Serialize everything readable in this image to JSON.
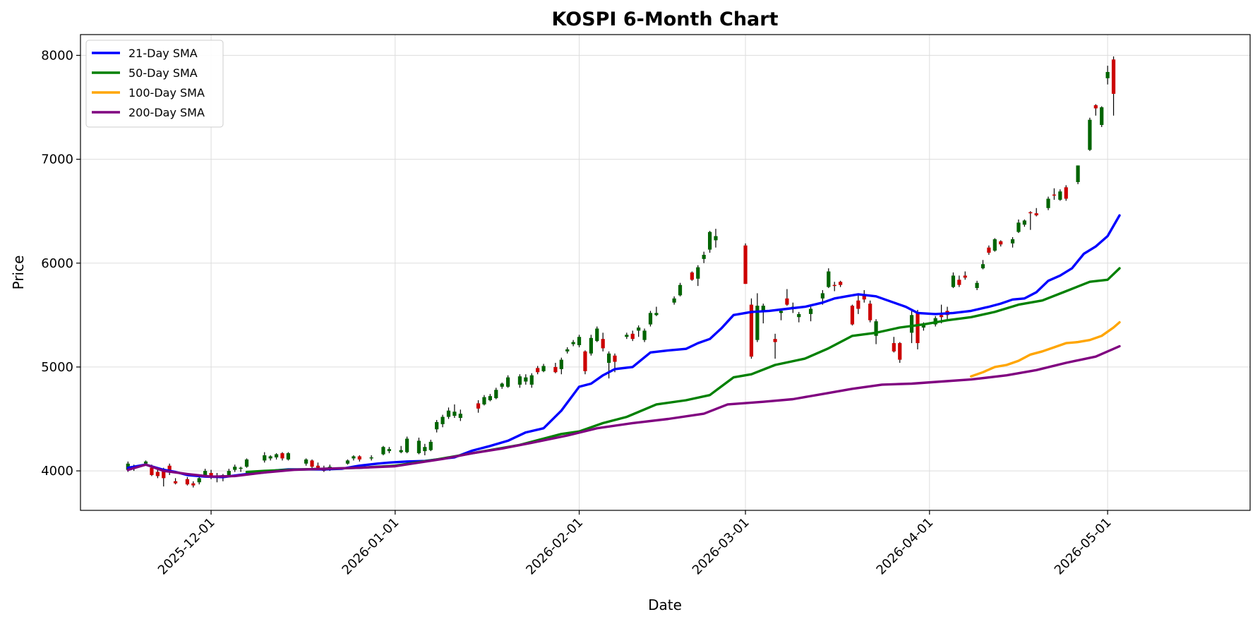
{
  "chart_data": {
    "type": "candlestick",
    "title": "KOSPI 6-Month Chart",
    "xlabel": "Date",
    "ylabel": "Price",
    "ylim": [
      3620,
      8200
    ],
    "xlim": [
      "2025-11-09",
      "2026-05-25"
    ],
    "x_ticks": [
      "2025-12-01",
      "2026-01-01",
      "2026-02-01",
      "2026-03-01",
      "2026-04-01",
      "2026-05-01"
    ],
    "y_ticks": [
      4000,
      5000,
      6000,
      7000,
      8000
    ],
    "grid": true,
    "legend_position": "top-left",
    "colors": {
      "up": "#006400",
      "down": "#cc0000",
      "wick": "#000000"
    },
    "candles": [
      [
        "2025-11-17",
        4010,
        4090,
        3990,
        4070
      ],
      [
        "2025-11-18",
        4040,
        4060,
        4000,
        4020
      ],
      [
        "2025-11-20",
        4070,
        4100,
        4050,
        4090
      ],
      [
        "2025-11-21",
        4030,
        4060,
        3950,
        3960
      ],
      [
        "2025-11-22",
        3990,
        4020,
        3930,
        3950
      ],
      [
        "2025-11-23",
        4010,
        4030,
        3850,
        3930
      ],
      [
        "2025-11-24",
        4050,
        4070,
        3960,
        3990
      ],
      [
        "2025-11-25",
        3900,
        3930,
        3870,
        3880
      ],
      [
        "2025-11-27",
        3920,
        3940,
        3860,
        3870
      ],
      [
        "2025-11-28",
        3880,
        3900,
        3840,
        3860
      ],
      [
        "2025-11-29",
        3890,
        3950,
        3870,
        3930
      ],
      [
        "2025-11-30",
        3950,
        4020,
        3940,
        4000
      ],
      [
        "2025-12-01",
        3980,
        4010,
        3920,
        3950
      ],
      [
        "2025-12-02",
        3950,
        3980,
        3890,
        3940
      ],
      [
        "2025-12-03",
        3940,
        3970,
        3900,
        3960
      ],
      [
        "2025-12-04",
        3960,
        4020,
        3950,
        4000
      ],
      [
        "2025-12-05",
        4010,
        4060,
        3990,
        4040
      ],
      [
        "2025-12-06",
        4020,
        4040,
        3990,
        4030
      ],
      [
        "2025-12-07",
        4040,
        4120,
        4030,
        4110
      ],
      [
        "2025-12-10",
        4100,
        4180,
        4080,
        4150
      ],
      [
        "2025-12-11",
        4120,
        4150,
        4100,
        4140
      ],
      [
        "2025-12-12",
        4130,
        4170,
        4110,
        4160
      ],
      [
        "2025-12-13",
        4170,
        4180,
        4100,
        4120
      ],
      [
        "2025-12-14",
        4110,
        4180,
        4100,
        4170
      ],
      [
        "2025-12-17",
        4070,
        4120,
        4050,
        4110
      ],
      [
        "2025-12-18",
        4100,
        4110,
        4020,
        4040
      ],
      [
        "2025-12-19",
        4050,
        4080,
        4010,
        4030
      ],
      [
        "2025-12-20",
        4020,
        4050,
        3990,
        4000
      ],
      [
        "2025-12-21",
        4020,
        4060,
        4000,
        4040
      ],
      [
        "2025-12-24",
        4070,
        4110,
        4060,
        4100
      ],
      [
        "2025-12-25",
        4120,
        4150,
        4100,
        4140
      ],
      [
        "2025-12-26",
        4140,
        4150,
        4090,
        4110
      ],
      [
        "2025-12-28",
        4120,
        4150,
        4100,
        4130
      ],
      [
        "2025-12-30",
        4160,
        4240,
        4150,
        4230
      ],
      [
        "2025-12-31",
        4190,
        4230,
        4170,
        4210
      ],
      [
        "2026-01-02",
        4180,
        4240,
        4170,
        4200
      ],
      [
        "2026-01-03",
        4180,
        4330,
        4170,
        4310
      ],
      [
        "2026-01-05",
        4170,
        4320,
        4160,
        4290
      ],
      [
        "2026-01-06",
        4190,
        4260,
        4150,
        4230
      ],
      [
        "2026-01-07",
        4200,
        4300,
        4190,
        4280
      ],
      [
        "2026-01-08",
        4400,
        4490,
        4370,
        4470
      ],
      [
        "2026-01-09",
        4450,
        4540,
        4420,
        4520
      ],
      [
        "2026-01-10",
        4520,
        4610,
        4500,
        4580
      ],
      [
        "2026-01-11",
        4530,
        4640,
        4510,
        4570
      ],
      [
        "2026-01-12",
        4510,
        4590,
        4480,
        4550
      ],
      [
        "2026-01-15",
        4650,
        4680,
        4560,
        4600
      ],
      [
        "2026-01-16",
        4640,
        4730,
        4630,
        4710
      ],
      [
        "2026-01-17",
        4680,
        4740,
        4670,
        4720
      ],
      [
        "2026-01-18",
        4700,
        4800,
        4690,
        4780
      ],
      [
        "2026-01-19",
        4810,
        4850,
        4790,
        4840
      ],
      [
        "2026-01-20",
        4810,
        4920,
        4800,
        4900
      ],
      [
        "2026-01-22",
        4830,
        4930,
        4800,
        4910
      ],
      [
        "2026-01-23",
        4860,
        4930,
        4830,
        4900
      ],
      [
        "2026-01-24",
        4830,
        4940,
        4800,
        4920
      ],
      [
        "2026-01-25",
        4990,
        5010,
        4930,
        4950
      ],
      [
        "2026-01-26",
        4960,
        5030,
        4950,
        5010
      ],
      [
        "2026-01-28",
        5000,
        5040,
        4940,
        4950
      ],
      [
        "2026-01-29",
        4980,
        5090,
        4930,
        5070
      ],
      [
        "2026-01-30",
        5150,
        5190,
        5130,
        5170
      ],
      [
        "2026-01-31",
        5220,
        5260,
        5200,
        5240
      ],
      [
        "2026-02-01",
        5210,
        5310,
        5190,
        5290
      ],
      [
        "2026-02-02",
        5150,
        5160,
        4930,
        4960
      ],
      [
        "2026-02-03",
        5130,
        5310,
        5110,
        5280
      ],
      [
        "2026-02-04",
        5250,
        5390,
        5240,
        5370
      ],
      [
        "2026-02-05",
        5270,
        5330,
        5150,
        5180
      ],
      [
        "2026-02-06",
        5040,
        5150,
        4890,
        5130
      ],
      [
        "2026-02-07",
        5110,
        5130,
        4950,
        5050
      ],
      [
        "2026-02-09",
        5290,
        5330,
        5270,
        5310
      ],
      [
        "2026-02-10",
        5320,
        5350,
        5250,
        5270
      ],
      [
        "2026-02-11",
        5350,
        5400,
        5290,
        5380
      ],
      [
        "2026-02-12",
        5260,
        5370,
        5240,
        5350
      ],
      [
        "2026-02-13",
        5410,
        5540,
        5390,
        5520
      ],
      [
        "2026-02-14",
        5500,
        5580,
        5490,
        5520
      ],
      [
        "2026-02-17",
        5620,
        5680,
        5600,
        5660
      ],
      [
        "2026-02-18",
        5690,
        5810,
        5680,
        5790
      ],
      [
        "2026-02-20",
        5910,
        5920,
        5830,
        5840
      ],
      [
        "2026-02-21",
        5850,
        5980,
        5780,
        5960
      ],
      [
        "2026-02-22",
        6040,
        6110,
        6000,
        6080
      ],
      [
        "2026-02-23",
        6130,
        6310,
        6100,
        6300
      ],
      [
        "2026-02-24",
        6220,
        6330,
        6150,
        6260
      ],
      [
        "2026-03-01",
        6170,
        6190,
        5800,
        5800
      ],
      [
        "2026-03-02",
        5600,
        5660,
        5080,
        5100
      ],
      [
        "2026-03-03",
        5260,
        5710,
        5240,
        5590
      ],
      [
        "2026-03-04",
        5540,
        5610,
        5420,
        5590
      ],
      [
        "2026-03-06",
        5270,
        5320,
        5080,
        5240
      ],
      [
        "2026-03-07",
        5520,
        5560,
        5450,
        5540
      ],
      [
        "2026-03-08",
        5660,
        5750,
        5590,
        5600
      ],
      [
        "2026-03-09",
        5570,
        5620,
        5520,
        5580
      ],
      [
        "2026-03-10",
        5480,
        5530,
        5430,
        5510
      ],
      [
        "2026-03-12",
        5510,
        5580,
        5440,
        5560
      ],
      [
        "2026-03-14",
        5660,
        5740,
        5600,
        5710
      ],
      [
        "2026-03-15",
        5770,
        5950,
        5760,
        5920
      ],
      [
        "2026-03-16",
        5790,
        5820,
        5730,
        5780
      ],
      [
        "2026-03-17",
        5820,
        5830,
        5770,
        5790
      ],
      [
        "2026-03-19",
        5590,
        5600,
        5400,
        5410
      ],
      [
        "2026-03-20",
        5640,
        5690,
        5510,
        5560
      ],
      [
        "2026-03-21",
        5700,
        5740,
        5620,
        5650
      ],
      [
        "2026-03-22",
        5610,
        5640,
        5430,
        5450
      ],
      [
        "2026-03-23",
        5300,
        5460,
        5220,
        5440
      ],
      [
        "2026-03-26",
        5230,
        5290,
        5140,
        5150
      ],
      [
        "2026-03-27",
        5230,
        5240,
        5040,
        5070
      ],
      [
        "2026-03-29",
        5330,
        5540,
        5230,
        5500
      ],
      [
        "2026-03-30",
        5530,
        5550,
        5170,
        5230
      ],
      [
        "2026-03-31",
        5380,
        5430,
        5350,
        5400
      ],
      [
        "2026-04-02",
        5410,
        5490,
        5390,
        5470
      ],
      [
        "2026-04-03",
        5500,
        5600,
        5420,
        5480
      ],
      [
        "2026-04-04",
        5540,
        5580,
        5460,
        5500
      ],
      [
        "2026-04-05",
        5770,
        5910,
        5760,
        5880
      ],
      [
        "2026-04-06",
        5840,
        5880,
        5770,
        5790
      ],
      [
        "2026-04-07",
        5880,
        5920,
        5840,
        5860
      ],
      [
        "2026-04-09",
        5760,
        5830,
        5740,
        5810
      ],
      [
        "2026-04-10",
        5950,
        6030,
        5940,
        5990
      ],
      [
        "2026-04-11",
        6150,
        6170,
        6080,
        6100
      ],
      [
        "2026-04-12",
        6120,
        6240,
        6110,
        6230
      ],
      [
        "2026-04-13",
        6210,
        6220,
        6160,
        6180
      ],
      [
        "2026-04-15",
        6190,
        6250,
        6150,
        6230
      ],
      [
        "2026-04-16",
        6300,
        6420,
        6290,
        6390
      ],
      [
        "2026-04-17",
        6370,
        6420,
        6350,
        6410
      ],
      [
        "2026-04-18",
        6490,
        6500,
        6320,
        6480
      ],
      [
        "2026-04-19",
        6480,
        6530,
        6450,
        6460
      ],
      [
        "2026-04-21",
        6530,
        6640,
        6510,
        6620
      ],
      [
        "2026-04-22",
        6660,
        6720,
        6610,
        6650
      ],
      [
        "2026-04-23",
        6610,
        6710,
        6600,
        6690
      ],
      [
        "2026-04-24",
        6730,
        6750,
        6600,
        6620
      ],
      [
        "2026-04-26",
        6780,
        6940,
        6760,
        6940
      ],
      [
        "2026-04-28",
        7090,
        7400,
        7080,
        7380
      ],
      [
        "2026-04-29",
        7520,
        7530,
        7420,
        7490
      ],
      [
        "2026-04-30",
        7330,
        7510,
        7310,
        7500
      ],
      [
        "2026-05-01",
        7780,
        7900,
        7720,
        7840
      ],
      [
        "2026-05-02",
        7960,
        7990,
        7420,
        7630
      ]
    ],
    "series": [
      {
        "name": "21-Day SMA",
        "color": "#0000ff",
        "x": [
          "2025-11-17",
          "2025-11-20",
          "2025-11-23",
          "2025-11-25",
          "2025-11-27",
          "2025-11-30",
          "2025-12-03",
          "2025-12-05",
          "2025-12-07",
          "2025-12-10",
          "2025-12-12",
          "2025-12-14",
          "2025-12-17",
          "2025-12-20",
          "2025-12-23",
          "2025-12-26",
          "2025-12-29",
          "2025-12-31",
          "2026-01-03",
          "2026-01-06",
          "2026-01-08",
          "2026-01-11",
          "2026-01-14",
          "2026-01-17",
          "2026-01-20",
          "2026-01-23",
          "2026-01-26",
          "2026-01-29",
          "2026-02-01",
          "2026-02-03",
          "2026-02-05",
          "2026-02-07",
          "2026-02-10",
          "2026-02-13",
          "2026-02-16",
          "2026-02-19",
          "2026-02-21",
          "2026-02-23",
          "2026-02-25",
          "2026-02-27",
          "2026-03-02",
          "2026-03-05",
          "2026-03-08",
          "2026-03-11",
          "2026-03-14",
          "2026-03-16",
          "2026-03-18",
          "2026-03-20",
          "2026-03-23",
          "2026-03-26",
          "2026-03-28",
          "2026-03-30",
          "2026-04-02",
          "2026-04-05",
          "2026-04-08",
          "2026-04-11",
          "2026-04-13",
          "2026-04-15",
          "2026-04-17",
          "2026-04-19",
          "2026-04-21",
          "2026-04-23",
          "2026-04-25",
          "2026-04-27",
          "2026-04-29",
          "2026-05-01",
          "2026-05-03"
        ],
        "values": [
          4030,
          4060,
          4010,
          3990,
          3960,
          3945,
          3940,
          3955,
          3970,
          3985,
          4005,
          4015,
          4015,
          4015,
          4020,
          4050,
          4070,
          4080,
          4090,
          4095,
          4110,
          4130,
          4195,
          4240,
          4290,
          4370,
          4410,
          4580,
          4810,
          4840,
          4920,
          4980,
          5000,
          5140,
          5160,
          5175,
          5230,
          5270,
          5375,
          5500,
          5530,
          5540,
          5560,
          5580,
          5620,
          5660,
          5680,
          5700,
          5680,
          5620,
          5580,
          5520,
          5510,
          5520,
          5540,
          5580,
          5610,
          5650,
          5660,
          5720,
          5830,
          5880,
          5950,
          6090,
          6160,
          6260,
          6460
        ]
      },
      {
        "name": "50-Day SMA",
        "color": "#008000",
        "x": [
          "2025-12-07",
          "2025-12-10",
          "2025-12-14",
          "2025-12-20",
          "2025-12-26",
          "2026-01-01",
          "2026-01-08",
          "2026-01-15",
          "2026-01-22",
          "2026-01-29",
          "2026-02-01",
          "2026-02-05",
          "2026-02-09",
          "2026-02-14",
          "2026-02-19",
          "2026-02-23",
          "2026-02-27",
          "2026-03-02",
          "2026-03-06",
          "2026-03-11",
          "2026-03-15",
          "2026-03-19",
          "2026-03-23",
          "2026-03-27",
          "2026-03-31",
          "2026-04-04",
          "2026-04-08",
          "2026-04-12",
          "2026-04-16",
          "2026-04-20",
          "2026-04-24",
          "2026-04-28",
          "2026-05-01",
          "2026-05-03"
        ],
        "values": [
          3990,
          4000,
          4010,
          4020,
          4030,
          4050,
          4110,
          4180,
          4250,
          4355,
          4380,
          4460,
          4520,
          4640,
          4680,
          4730,
          4900,
          4930,
          5020,
          5080,
          5180,
          5300,
          5330,
          5380,
          5410,
          5450,
          5480,
          5530,
          5600,
          5640,
          5730,
          5820,
          5840,
          5950
        ]
      },
      {
        "name": "100-Day SMA",
        "color": "#ffa500",
        "x": [
          "2026-04-08",
          "2026-04-10",
          "2026-04-12",
          "2026-04-14",
          "2026-04-16",
          "2026-04-18",
          "2026-04-20",
          "2026-04-22",
          "2026-04-24",
          "2026-04-26",
          "2026-04-28",
          "2026-04-30",
          "2026-05-02",
          "2026-05-03"
        ],
        "values": [
          4910,
          4950,
          5000,
          5020,
          5060,
          5120,
          5150,
          5190,
          5230,
          5240,
          5260,
          5300,
          5380,
          5430
        ]
      },
      {
        "name": "200-Day SMA",
        "color": "#800080",
        "x": [
          "2025-11-17",
          "2025-11-20",
          "2025-11-23",
          "2025-11-27",
          "2025-12-01",
          "2025-12-05",
          "2025-12-10",
          "2025-12-15",
          "2025-12-20",
          "2025-12-26",
          "2026-01-01",
          "2026-01-05",
          "2026-01-09",
          "2026-01-14",
          "2026-01-19",
          "2026-01-24",
          "2026-01-30",
          "2026-02-04",
          "2026-02-10",
          "2026-02-16",
          "2026-02-22",
          "2026-02-26",
          "2026-03-04",
          "2026-03-09",
          "2026-03-14",
          "2026-03-19",
          "2026-03-24",
          "2026-03-29",
          "2026-04-03",
          "2026-04-08",
          "2026-04-14",
          "2026-04-19",
          "2026-04-24",
          "2026-04-29",
          "2026-05-03"
        ],
        "values": [
          4010,
          4060,
          4000,
          3970,
          3945,
          3950,
          3985,
          4010,
          4020,
          4030,
          4045,
          4080,
          4115,
          4170,
          4215,
          4270,
          4340,
          4410,
          4460,
          4500,
          4550,
          4640,
          4665,
          4690,
          4740,
          4790,
          4830,
          4840,
          4860,
          4880,
          4920,
          4970,
          5040,
          5100,
          5200
        ]
      }
    ]
  }
}
